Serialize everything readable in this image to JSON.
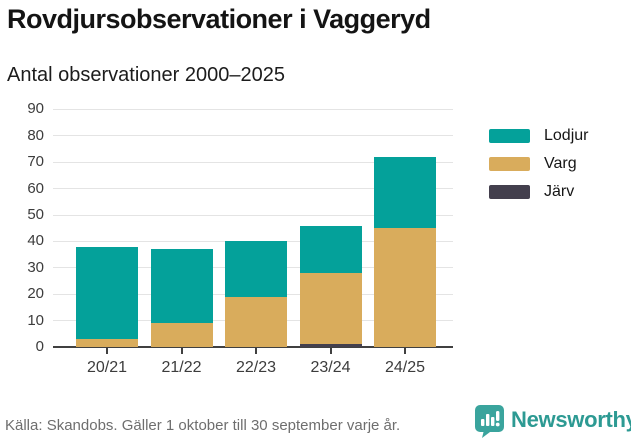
{
  "header": {
    "title": "Rovdjursobservationer i Vaggeryd",
    "subtitle": "Antal observationer 2000–2025"
  },
  "chart_data": {
    "type": "bar",
    "stacked": true,
    "title": "Rovdjursobservationer i Vaggeryd",
    "subtitle": "Antal observationer 2000–2025",
    "categories": [
      "20/21",
      "21/22",
      "22/23",
      "23/24",
      "24/25"
    ],
    "series": [
      {
        "name": "Lodjur",
        "color": "#04a19a",
        "values": [
          35,
          28,
          21,
          18,
          27
        ]
      },
      {
        "name": "Varg",
        "color": "#d9ac5c",
        "values": [
          3,
          9,
          19,
          27,
          45
        ]
      },
      {
        "name": "Järv",
        "color": "#433f4d",
        "values": [
          0,
          0,
          0,
          1,
          0
        ]
      }
    ],
    "stack_order_bottom_up": [
      "Järv",
      "Varg",
      "Lodjur"
    ],
    "totals": [
      38,
      37,
      40,
      46,
      72
    ],
    "xlabel": "",
    "ylabel": "",
    "ylim": [
      0,
      90
    ],
    "yticks": [
      0,
      10,
      20,
      30,
      40,
      50,
      60,
      70,
      80,
      90
    ],
    "grid": true,
    "legend_position": "right"
  },
  "legend": {
    "items": [
      {
        "label": "Lodjur",
        "color": "#04a19a"
      },
      {
        "label": "Varg",
        "color": "#d9ac5c"
      },
      {
        "label": "Järv",
        "color": "#433f4d"
      }
    ]
  },
  "footer": {
    "source": "Källa: Skandobs. Gäller 1 oktober till 30 september varje år.",
    "brand": "Newsworthy"
  },
  "colors": {
    "lodjur": "#04a19a",
    "varg": "#d9ac5c",
    "jarv": "#433f4d",
    "axis": "#404040",
    "gridline": "#e4e4e4",
    "brand_teal": "#2d9a93"
  }
}
